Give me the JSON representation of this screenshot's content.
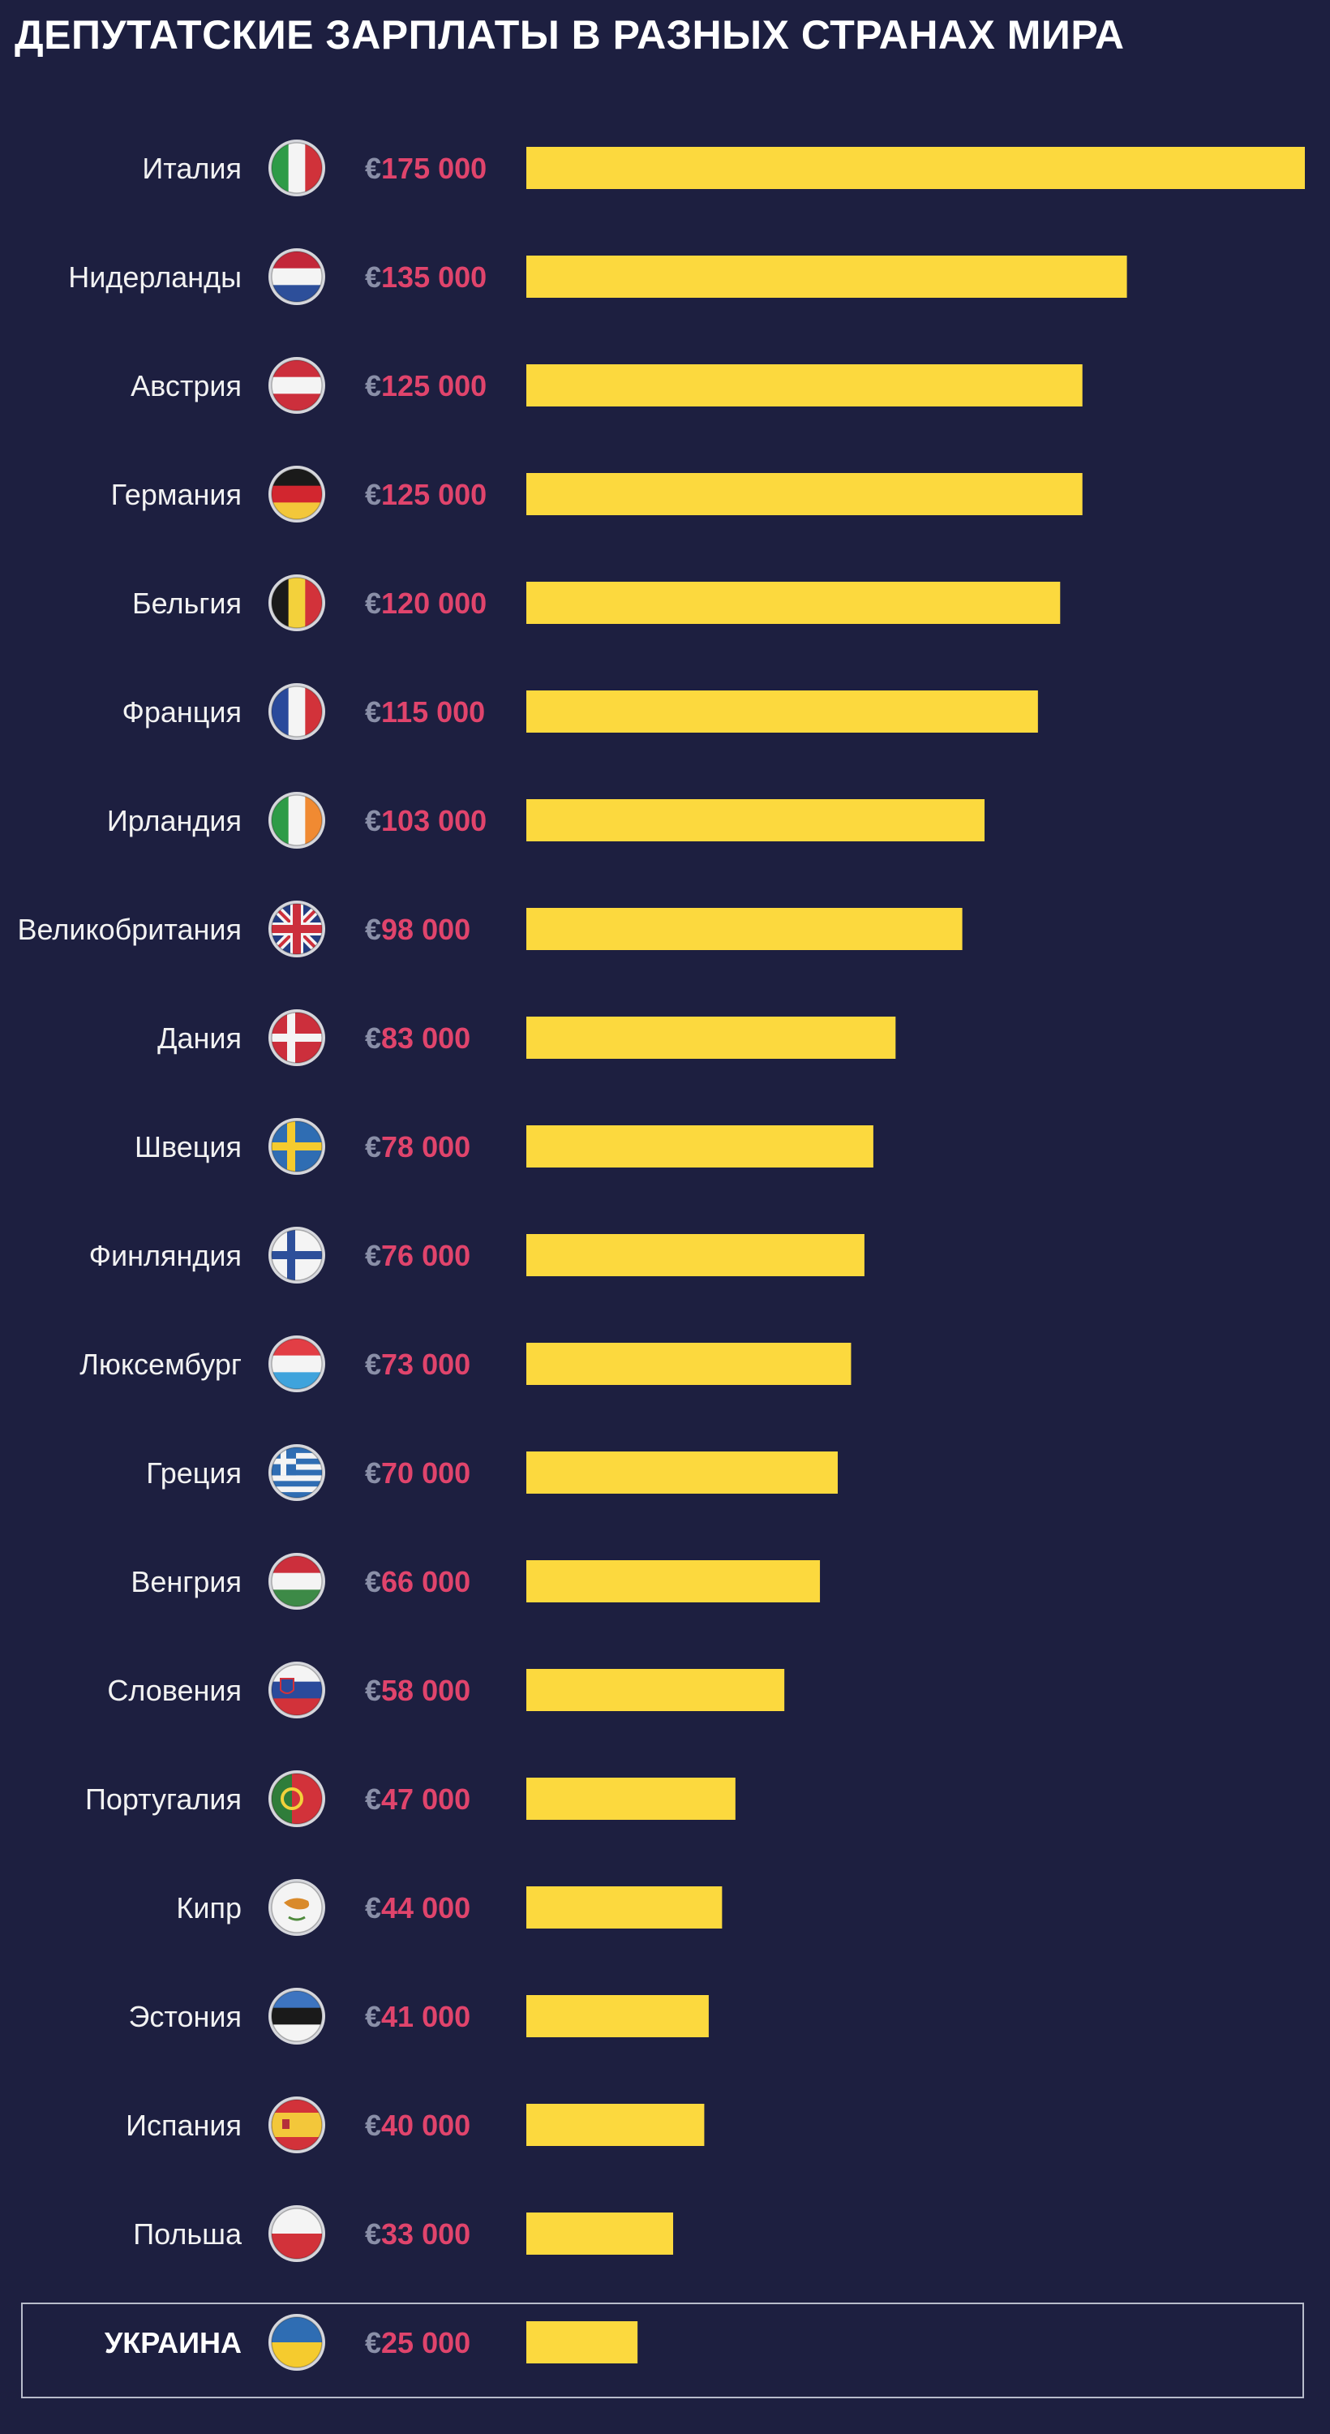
{
  "chart_data": {
    "type": "bar",
    "orientation": "horizontal",
    "title": "ДЕПУТАТСКИЕ ЗАРПЛАТЫ В РАЗНЫХ СТРАНАХ МИРА",
    "currency_symbol": "€",
    "xlim": [
      0,
      175000
    ],
    "colors": {
      "background": "#1d1f40",
      "bar": "#fcd93e",
      "value_number": "#e0446c",
      "euro": "#8a8fa8",
      "label": "#f2f2f2"
    },
    "categories": [
      {
        "name": "Италия",
        "label": "175 000",
        "value": 175000,
        "flag": "italy-flag-icon"
      },
      {
        "name": "Нидерланды",
        "label": "135 000",
        "value": 135000,
        "flag": "netherlands-flag-icon"
      },
      {
        "name": "Австрия",
        "label": "125 000",
        "value": 125000,
        "flag": "austria-flag-icon"
      },
      {
        "name": "Германия",
        "label": "125 000",
        "value": 125000,
        "flag": "germany-flag-icon"
      },
      {
        "name": "Бельгия",
        "label": "120 000",
        "value": 120000,
        "flag": "belgium-flag-icon"
      },
      {
        "name": "Франция",
        "label": "115 000",
        "value": 115000,
        "flag": "france-flag-icon"
      },
      {
        "name": "Ирландия",
        "label": "103 000",
        "value": 103000,
        "flag": "ireland-flag-icon"
      },
      {
        "name": "Великобритания",
        "label": "98 000",
        "value": 98000,
        "flag": "uk-flag-icon"
      },
      {
        "name": "Дания",
        "label": "83 000",
        "value": 83000,
        "flag": "denmark-flag-icon"
      },
      {
        "name": "Швеция",
        "label": "78 000",
        "value": 78000,
        "flag": "sweden-flag-icon"
      },
      {
        "name": "Финляндия",
        "label": "76 000",
        "value": 76000,
        "flag": "finland-flag-icon"
      },
      {
        "name": "Люксембург",
        "label": "73 000",
        "value": 73000,
        "flag": "luxembourg-flag-icon"
      },
      {
        "name": "Греция",
        "label": "70 000",
        "value": 70000,
        "flag": "greece-flag-icon"
      },
      {
        "name": "Венгрия",
        "label": "66 000",
        "value": 66000,
        "flag": "hungary-flag-icon"
      },
      {
        "name": "Словения",
        "label": "58 000",
        "value": 58000,
        "flag": "slovenia-flag-icon"
      },
      {
        "name": "Португалия",
        "label": "47 000",
        "value": 47000,
        "flag": "portugal-flag-icon"
      },
      {
        "name": "Кипр",
        "label": "44 000",
        "value": 44000,
        "flag": "cyprus-flag-icon"
      },
      {
        "name": "Эстония",
        "label": "41 000",
        "value": 41000,
        "flag": "estonia-flag-icon"
      },
      {
        "name": "Испания",
        "label": "40 000",
        "value": 40000,
        "flag": "spain-flag-icon"
      },
      {
        "name": "Польша",
        "label": "33 000",
        "value": 33000,
        "flag": "poland-flag-icon"
      },
      {
        "name": "УКРАИНА",
        "label": "25 000",
        "value": 25000,
        "flag": "ukraine-flag-icon",
        "highlight": true
      }
    ]
  }
}
